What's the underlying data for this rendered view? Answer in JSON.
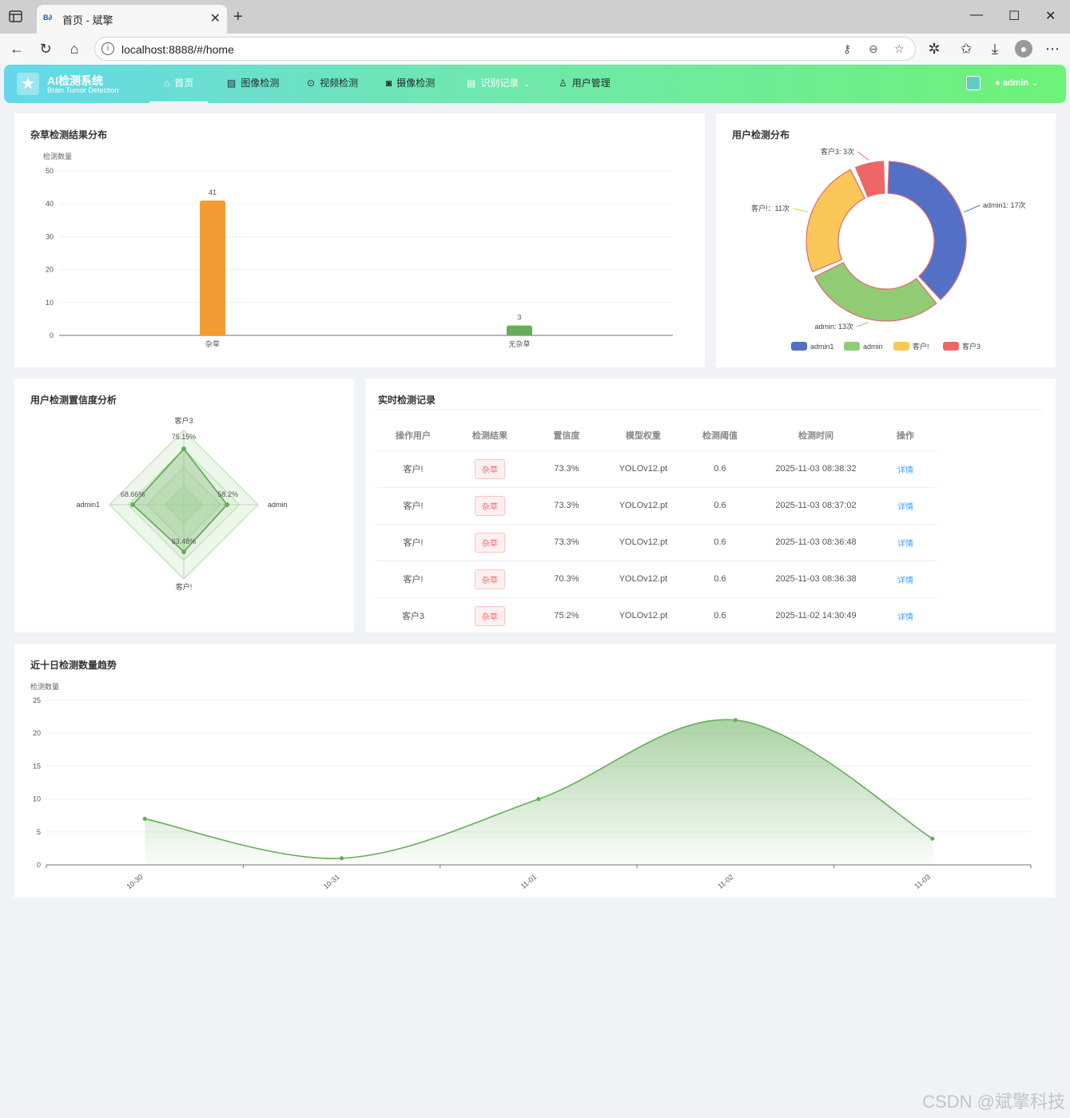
{
  "browser": {
    "tab_title": "首页 - 斌擎",
    "favicon_text": "B∂",
    "url": "localhost:8888/#/home",
    "win_min": "—",
    "win_max": "☐",
    "win_close": "✕"
  },
  "app": {
    "logo_title": "AI检测系统",
    "logo_subtitle": "Brain Tumor Detection",
    "nav": [
      {
        "label": "首页",
        "icon": "home-icon"
      },
      {
        "label": "图像检测",
        "icon": "image-icon"
      },
      {
        "label": "视频检测",
        "icon": "play-icon"
      },
      {
        "label": "摄像检测",
        "icon": "camera-icon"
      },
      {
        "label": "识别记录",
        "icon": "document-icon"
      },
      {
        "label": "用户管理",
        "icon": "user-icon"
      }
    ],
    "user_name": "admin"
  },
  "bar_card": {
    "title": "杂草检测结果分布"
  },
  "pie_card": {
    "title": "用户检测分布"
  },
  "radar_card": {
    "title": "用户检测置信度分析"
  },
  "table_card": {
    "title": "实时检测记录",
    "headers": [
      "操作用户",
      "检测结果",
      "置信度",
      "模型权重",
      "检测阈值",
      "检测时间",
      "操作"
    ],
    "rows": [
      {
        "user": "客户!",
        "result": "杂草",
        "conf": "73.3%",
        "model": "YOLOv12.pt",
        "thr": "0.6",
        "time": "2025-11-03 08:38:32",
        "action": "详情"
      },
      {
        "user": "客户!",
        "result": "杂草",
        "conf": "73.3%",
        "model": "YOLOv12.pt",
        "thr": "0.6",
        "time": "2025-11-03 08:37:02",
        "action": "详情"
      },
      {
        "user": "客户!",
        "result": "杂草",
        "conf": "73.3%",
        "model": "YOLOv12.pt",
        "thr": "0.6",
        "time": "2025-11-03 08:36:48",
        "action": "详情"
      },
      {
        "user": "客户!",
        "result": "杂草",
        "conf": "70.3%",
        "model": "YOLOv12.pt",
        "thr": "0.6",
        "time": "2025-11-03 08:36:38",
        "action": "详情"
      },
      {
        "user": "客户3",
        "result": "杂草",
        "conf": "75.2%",
        "model": "YOLOv12.pt",
        "thr": "0.6",
        "time": "2025-11-02 14:30:49",
        "action": "详情"
      }
    ]
  },
  "line_card": {
    "title": "近十日检测数量趋势"
  },
  "watermark": "CSDN @斌擎科技",
  "chart_data": [
    {
      "type": "bar",
      "title": "杂草检测结果分布",
      "ylabel": "检测数量",
      "categories": [
        "杂草",
        "无杂草"
      ],
      "values": [
        41,
        3
      ],
      "colors": [
        "#f39c33",
        "#67ad5b"
      ],
      "ylim": [
        0,
        50
      ],
      "yticks": [
        0,
        10,
        20,
        30,
        40,
        50
      ]
    },
    {
      "type": "pie",
      "title": "用户检测分布",
      "slices": [
        {
          "name": "admin1",
          "value": 17,
          "label": "admin1: 17次",
          "color": "#5470c6"
        },
        {
          "name": "admin",
          "value": 13,
          "label": "admin: 13次",
          "color": "#91cc75"
        },
        {
          "name": "客户!",
          "value": 11,
          "label": "客户!：11次",
          "color": "#fac858"
        },
        {
          "name": "客户3",
          "value": 3,
          "label": "客户3: 3次",
          "color": "#ee6666"
        }
      ]
    },
    {
      "type": "radar",
      "title": "用户检测置信度分析",
      "indicators": [
        "客户3",
        "admin",
        "客户!",
        "admin1"
      ],
      "values": [
        75.15,
        58.2,
        63.48,
        68.66
      ],
      "value_labels": [
        "75.15%",
        "58.2%",
        "63.48%",
        "68.66%"
      ],
      "max": 100
    },
    {
      "type": "area",
      "title": "近十日检测数量趋势",
      "ylabel": "检测数量",
      "x": [
        "10-30",
        "10-31",
        "11-01",
        "11-02",
        "11-03"
      ],
      "values": [
        7,
        1,
        10,
        22,
        4
      ],
      "ylim": [
        0,
        25
      ],
      "yticks": [
        0,
        5,
        10,
        15,
        20,
        25
      ]
    }
  ]
}
